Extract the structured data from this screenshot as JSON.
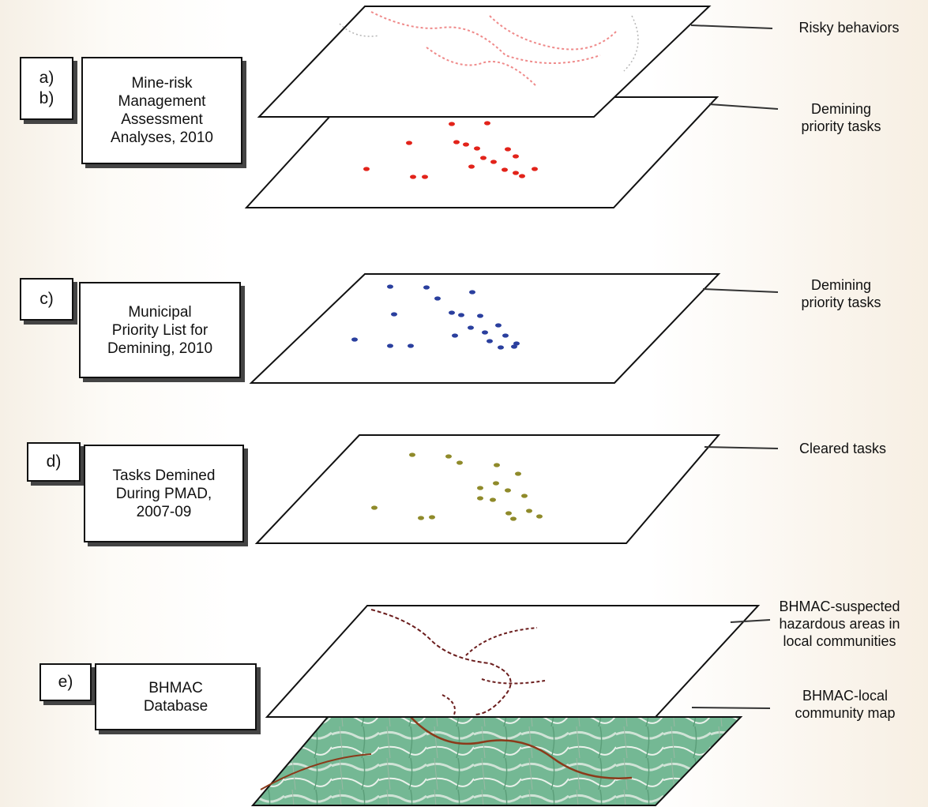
{
  "groups": [
    {
      "id": "ab",
      "letters": "a)\nb)",
      "box_label": "Mine-risk\nManagement\nAssessment\nAnalyses, 2010"
    },
    {
      "id": "c",
      "letters": "c)",
      "box_label": "Municipal\nPriority List for\nDemining, 2010"
    },
    {
      "id": "d",
      "letters": "d)",
      "box_label": "Tasks Demined\nDuring PMAD,\n2007-09"
    },
    {
      "id": "e",
      "letters": "e)",
      "box_label": "BHMAC\nDatabase"
    }
  ],
  "layers": [
    {
      "id": "risky",
      "label": "Risky behaviors"
    },
    {
      "id": "priority-ab",
      "label": "Demining\npriority tasks",
      "point_color": "#e2231a"
    },
    {
      "id": "priority-c",
      "label": "Demining\npriority tasks",
      "point_color": "#2a3f9e"
    },
    {
      "id": "cleared",
      "label": "Cleared tasks",
      "point_color": "#8f8a2a"
    },
    {
      "id": "hazard",
      "label": "BHMAC-suspected\nhazardous areas in\nlocal communities"
    },
    {
      "id": "community-map",
      "label": "BHMAC-local\ncommunity map",
      "map_color": "#6fb58f"
    }
  ]
}
